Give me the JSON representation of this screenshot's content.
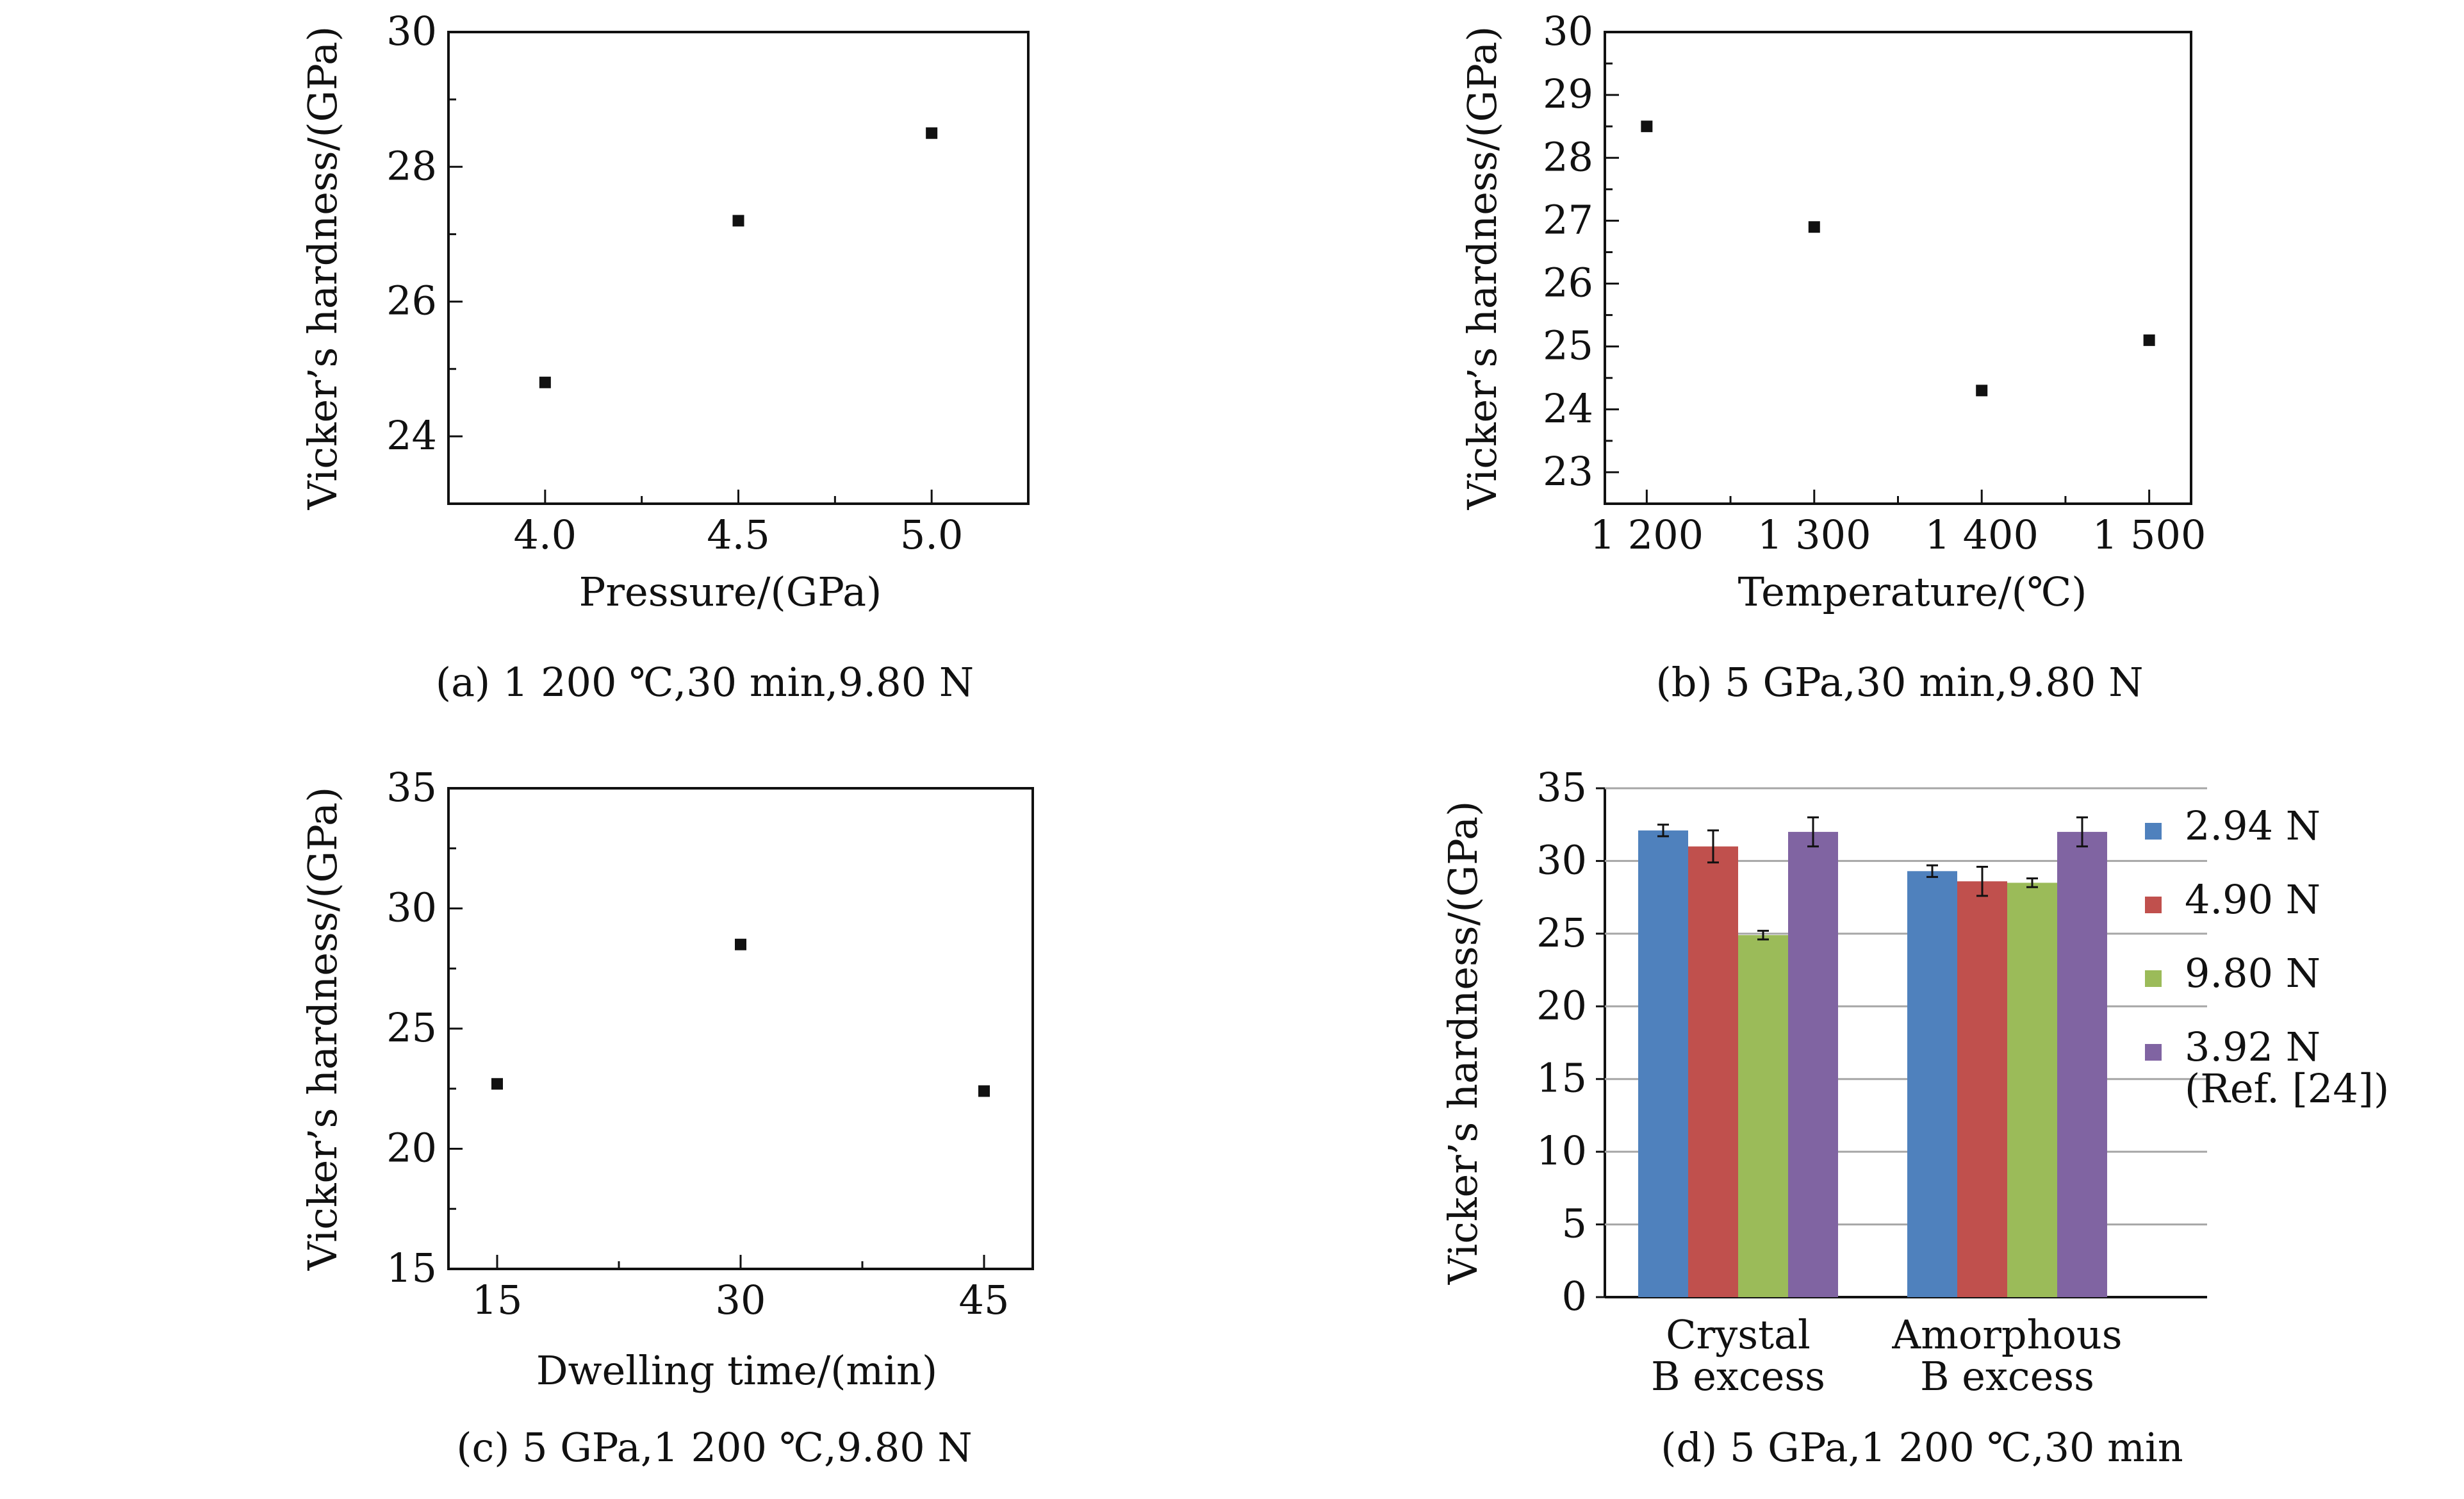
{
  "chart_data": [
    {
      "type": "scatter",
      "id": "a",
      "caption": "(a) 1 200 ℃,30 min,9.80 N",
      "xlabel": "Pressure/(GPa)",
      "ylabel": "Vicker’s hardness/(GPa)",
      "xlim": [
        3.75,
        5.25
      ],
      "ylim": [
        23,
        30
      ],
      "xticks": [
        4.0,
        4.5,
        5.0
      ],
      "xtick_labels": [
        "4.0",
        "4.5",
        "5.0"
      ],
      "yticks": [
        24,
        26,
        28,
        30
      ],
      "ytick_labels": [
        "24",
        "26",
        "28",
        "30"
      ],
      "grid": false,
      "x": [
        4.0,
        4.5,
        5.0
      ],
      "y": [
        24.8,
        27.2,
        28.5
      ]
    },
    {
      "type": "scatter",
      "id": "b",
      "caption": "(b) 5 GPa,30 min,9.80 N",
      "xlabel": "Temperature/(℃)",
      "ylabel": "Vicker’s hardness/(GPa)",
      "xlim": [
        1175,
        1525
      ],
      "ylim": [
        22.5,
        30
      ],
      "xticks": [
        1200,
        1300,
        1400,
        1500
      ],
      "xtick_labels": [
        "1 200",
        "1 300",
        "1 400",
        "1 500"
      ],
      "yticks": [
        23,
        24,
        25,
        26,
        27,
        28,
        29,
        30
      ],
      "ytick_labels": [
        "23",
        "24",
        "25",
        "26",
        "27",
        "28",
        "29",
        "30"
      ],
      "grid": false,
      "x": [
        1200,
        1300,
        1400,
        1500
      ],
      "y": [
        28.5,
        26.9,
        24.3,
        25.1
      ]
    },
    {
      "type": "scatter",
      "id": "c",
      "caption": "(c) 5 GPa,1 200 ℃,9.80 N",
      "xlabel": "Dwelling time/(min)",
      "ylabel": "Vicker’s hardness/(GPa)",
      "xlim": [
        12,
        48
      ],
      "ylim": [
        15,
        35
      ],
      "xticks": [
        15,
        30,
        45
      ],
      "xtick_labels": [
        "15",
        "30",
        "45"
      ],
      "yticks": [
        15,
        20,
        25,
        30,
        35
      ],
      "ytick_labels": [
        "15",
        "20",
        "25",
        "30",
        "35"
      ],
      "grid": false,
      "x": [
        15,
        30,
        45
      ],
      "y": [
        22.7,
        28.5,
        22.4
      ]
    },
    {
      "type": "bar",
      "id": "d",
      "caption": "(d) 5 GPa,1 200 ℃,30 min",
      "ylabel": "Vicker’s hardness/(GPa)",
      "ylim": [
        0,
        35
      ],
      "yticks": [
        0,
        5,
        10,
        15,
        20,
        25,
        30,
        35
      ],
      "ytick_labels": [
        "0",
        "5",
        "10",
        "15",
        "20",
        "25",
        "30",
        "35"
      ],
      "grid": true,
      "legend_position": "right",
      "categories": [
        {
          "line1": "Crystal",
          "line2": "B excess"
        },
        {
          "line1": "Amorphous",
          "line2": "B excess"
        }
      ],
      "series": [
        {
          "name": "2.94 N",
          "name2": "",
          "color": "#4f81bd",
          "values": [
            32.1,
            29.3
          ],
          "errors": [
            0.4,
            0.4
          ]
        },
        {
          "name": "4.90 N",
          "name2": "",
          "color": "#c0504d",
          "values": [
            31.0,
            28.6
          ],
          "errors": [
            1.1,
            1.0
          ]
        },
        {
          "name": "9.80 N",
          "name2": "",
          "color": "#9bbb59",
          "values": [
            24.9,
            28.5
          ],
          "errors": [
            0.3,
            0.3
          ]
        },
        {
          "name": "3.92 N",
          "name2": "(Ref. [24])",
          "color": "#8064a2",
          "values": [
            32.0,
            32.0
          ],
          "errors": [
            1.0,
            1.0
          ]
        }
      ]
    }
  ]
}
